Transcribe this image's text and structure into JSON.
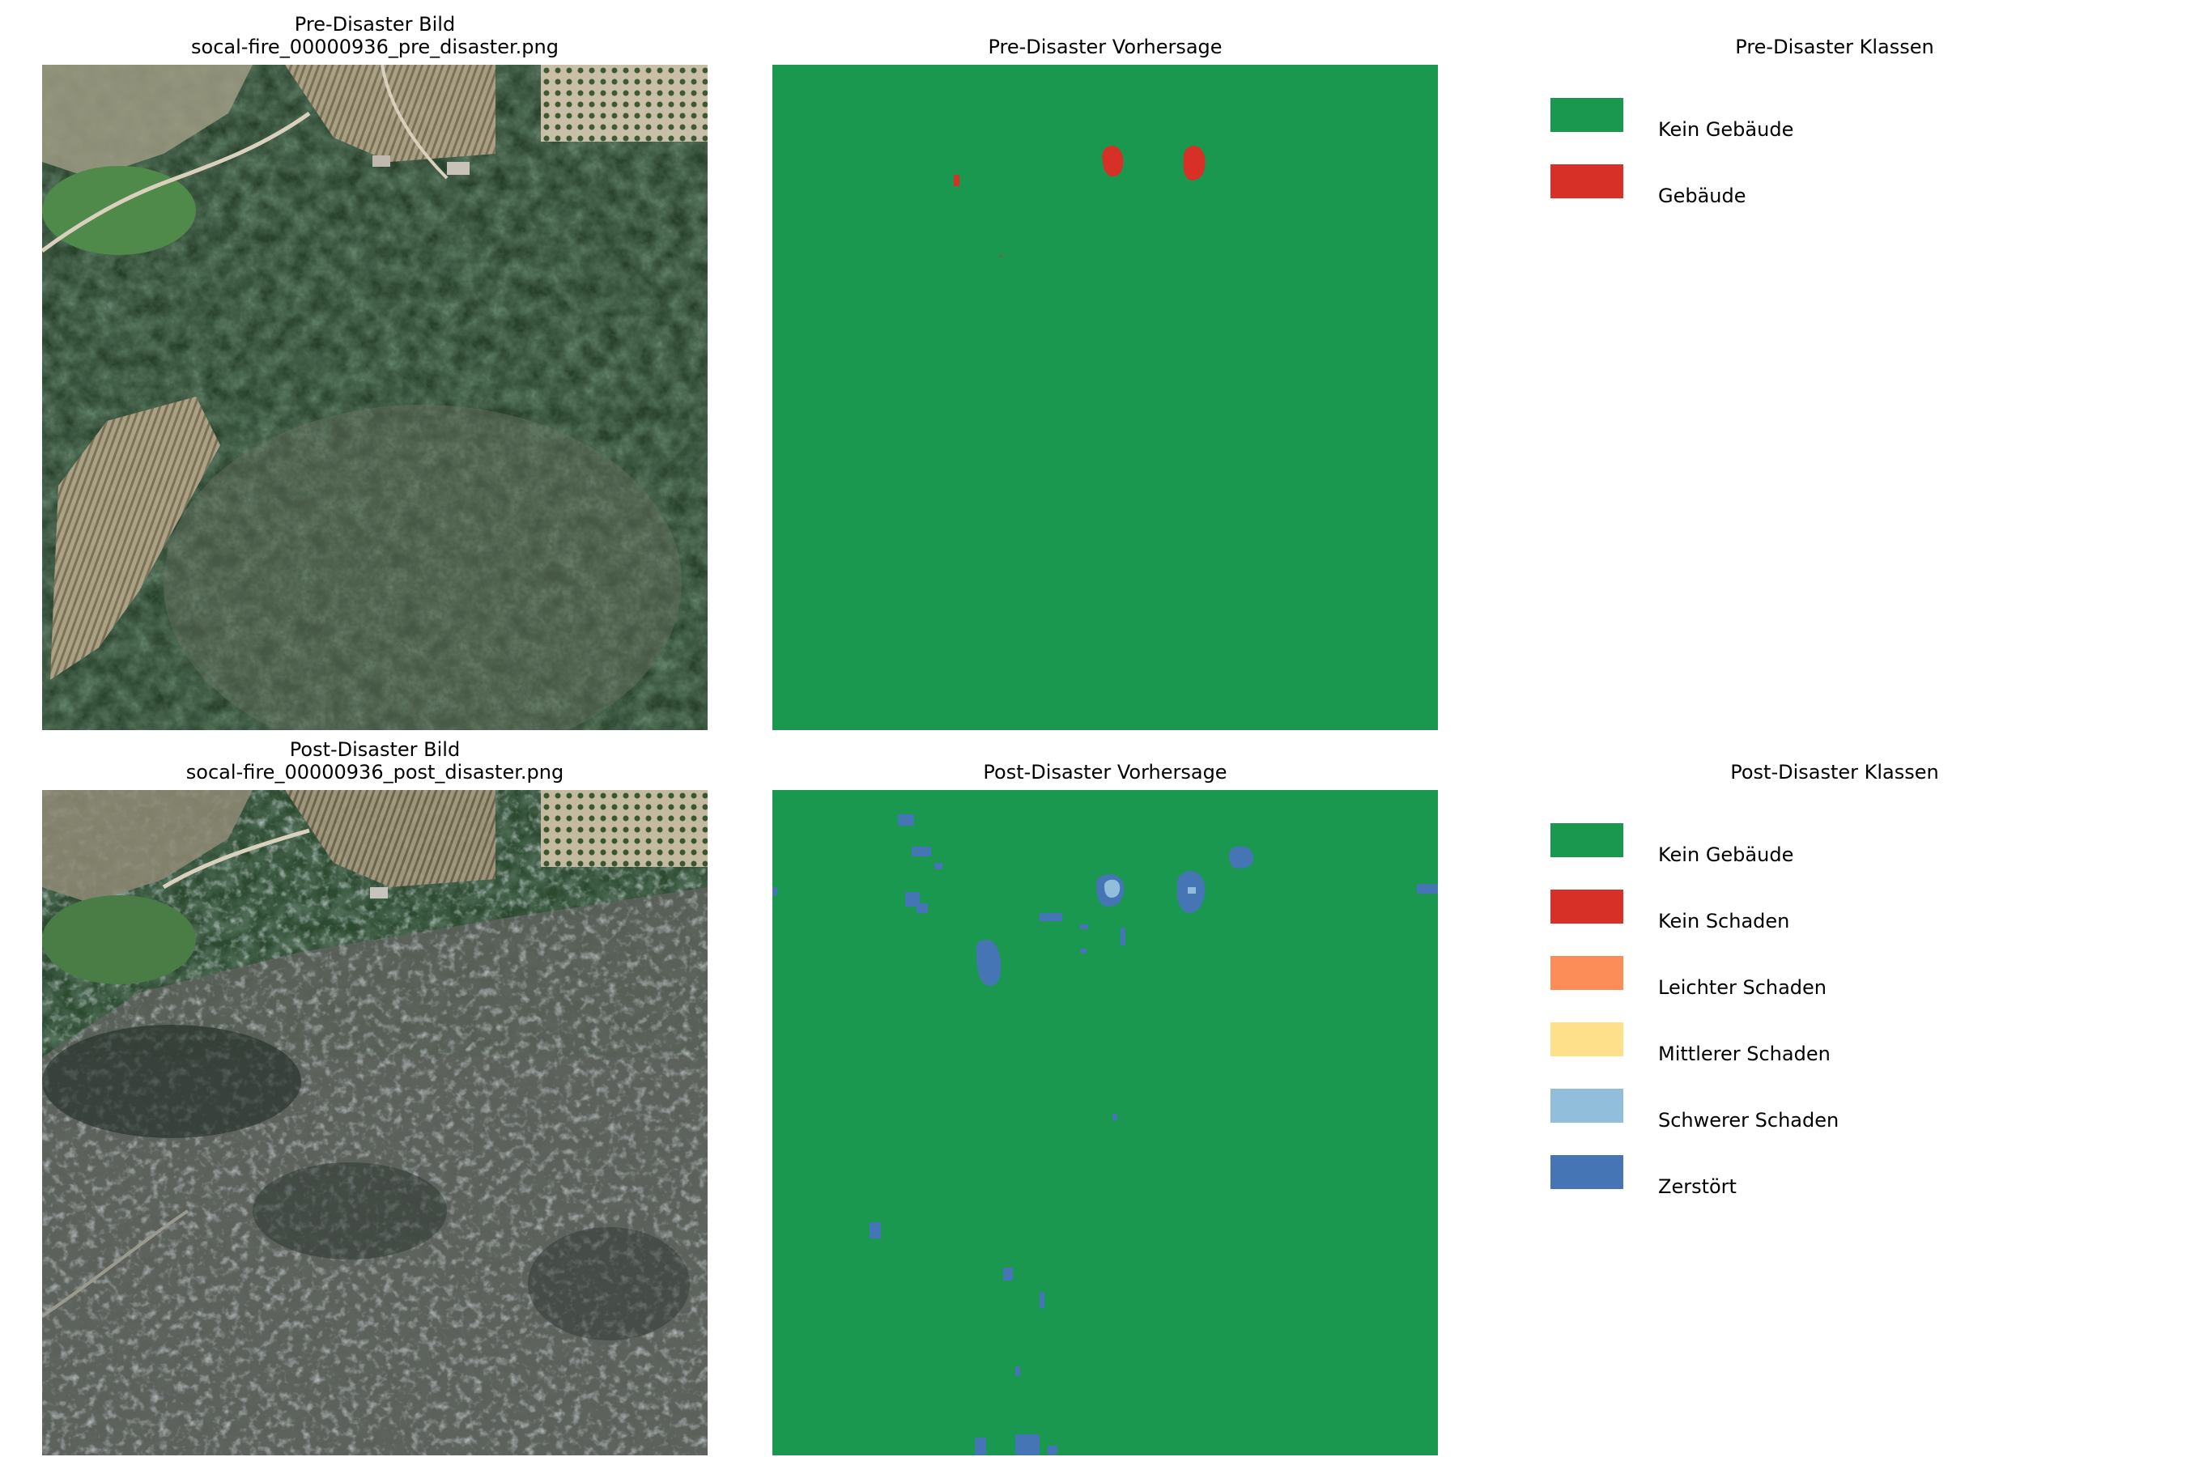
{
  "panels": {
    "pre_image": {
      "title_line1": "Pre-Disaster Bild",
      "title_line2": "socal-fire_00000936_pre_disaster.png"
    },
    "pre_prediction": {
      "title": "Pre-Disaster Vorhersage"
    },
    "pre_legend": {
      "title": "Pre-Disaster Klassen",
      "items": [
        {
          "label": "Kein Gebäude",
          "color": "#1a9850"
        },
        {
          "label": "Gebäude",
          "color": "#d73027"
        }
      ]
    },
    "post_image": {
      "title_line1": "Post-Disaster Bild",
      "title_line2": "socal-fire_00000936_post_disaster.png"
    },
    "post_prediction": {
      "title": "Post-Disaster Vorhersage"
    },
    "post_legend": {
      "title": "Post-Disaster Klassen",
      "items": [
        {
          "label": "Kein Gebäude",
          "color": "#1a9850"
        },
        {
          "label": "Kein Schaden",
          "color": "#d73027"
        },
        {
          "label": "Leichter Schaden",
          "color": "#fc8d59"
        },
        {
          "label": "Mittlerer Schaden",
          "color": "#fee08b"
        },
        {
          "label": "Schwerer Schaden",
          "color": "#91bfdb"
        },
        {
          "label": "Zerstört",
          "color": "#4575b4"
        }
      ]
    }
  },
  "colors": {
    "background_class": "#1a9850",
    "building": "#d73027",
    "destroyed": "#4575b4",
    "major_damage": "#91bfdb"
  }
}
